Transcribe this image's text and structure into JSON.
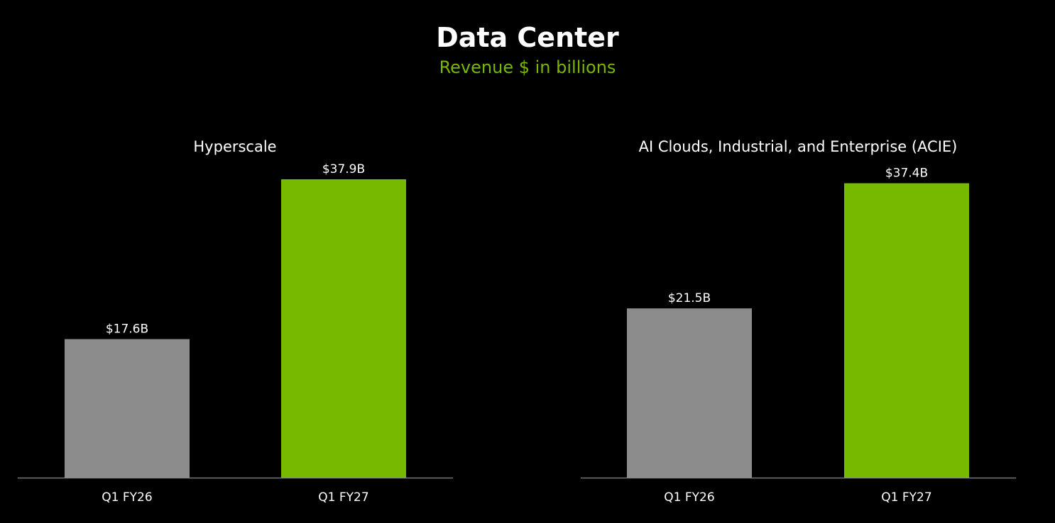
{
  "title": "Data Center",
  "subtitle": "Revenue $ in billions",
  "colors": {
    "background": "#000000",
    "text": "#ffffff",
    "accent": "#76b900",
    "prior": "#8c8c8c",
    "axis": "#8a8a8a"
  },
  "chart_data": [
    {
      "type": "bar",
      "title": "Hyperscale",
      "xlabel": "",
      "ylabel": "",
      "categories": [
        "Q1 FY26",
        "Q1 FY27"
      ],
      "values": [
        17.6,
        37.9
      ],
      "value_labels": [
        "$17.6B",
        "$37.9B"
      ],
      "unit": "$ in billions",
      "grid": false
    },
    {
      "type": "bar",
      "title": "AI Clouds, Industrial, and Enterprise (ACIE)",
      "xlabel": "",
      "ylabel": "",
      "categories": [
        "Q1 FY26",
        "Q1 FY27"
      ],
      "values": [
        21.5,
        37.4
      ],
      "value_labels": [
        "$21.5B",
        "$37.4B"
      ],
      "unit": "$ in billions",
      "grid": false
    }
  ]
}
